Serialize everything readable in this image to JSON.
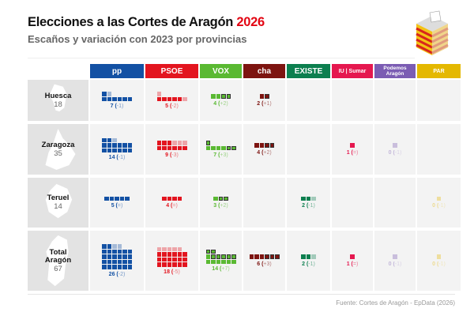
{
  "title": {
    "main": "Elecciones a las Cortes de Aragón",
    "year": "2026"
  },
  "subtitle": "Escaños y variación con 2023 por provincias",
  "source": "Fuente: Cortes de Aragón - EpData (2026)",
  "chart_data": {
    "type": "table",
    "title": "Elecciones a las Cortes de Aragón 2026",
    "subtitle": "Escaños y variación con 2023 por provincias",
    "parties": [
      {
        "name": "PP",
        "label": "pp",
        "color": "#1351a4"
      },
      {
        "name": "PSOE",
        "label": "PSOE",
        "color": "#e3151f"
      },
      {
        "name": "VOX",
        "label": "VOX",
        "color": "#5ab932"
      },
      {
        "name": "CHA",
        "label": "cha",
        "color": "#7d1410"
      },
      {
        "name": "EXISTE",
        "label": "EXISTE",
        "color": "#0c7f4f"
      },
      {
        "name": "IU-Sumar",
        "label": "IU | Sumar",
        "color": "#e5184f"
      },
      {
        "name": "Podemos",
        "label": "Podemos Aragón",
        "color": "#7b5cb3"
      },
      {
        "name": "PAR",
        "label": "PAR",
        "color": "#e4b800"
      }
    ],
    "rows": [
      {
        "name": "Huesca",
        "seats": "18",
        "results": [
          {
            "seats": 7,
            "change": "-1"
          },
          {
            "seats": 5,
            "change": "-2"
          },
          {
            "seats": 4,
            "change": "+2"
          },
          {
            "seats": 2,
            "change": "+1"
          },
          null,
          null,
          null,
          null
        ]
      },
      {
        "name": "Zaragoza",
        "seats": "35",
        "results": [
          {
            "seats": 14,
            "change": "-1"
          },
          {
            "seats": 9,
            "change": "-3"
          },
          {
            "seats": 7,
            "change": "+3"
          },
          {
            "seats": 4,
            "change": "+2"
          },
          null,
          {
            "seats": 1,
            "change": "="
          },
          {
            "seats": 0,
            "change": "-1"
          },
          null
        ]
      },
      {
        "name": "Teruel",
        "seats": "14",
        "results": [
          {
            "seats": 5,
            "change": "="
          },
          {
            "seats": 4,
            "change": "="
          },
          {
            "seats": 3,
            "change": "+2"
          },
          null,
          {
            "seats": 2,
            "change": "-1"
          },
          null,
          null,
          {
            "seats": 0,
            "change": "-1"
          }
        ]
      },
      {
        "name": "Total Aragón",
        "seats": "67",
        "results": [
          {
            "seats": 26,
            "change": "-2"
          },
          {
            "seats": 18,
            "change": "-5"
          },
          {
            "seats": 14,
            "change": "+7"
          },
          {
            "seats": 6,
            "change": "+3"
          },
          {
            "seats": 2,
            "change": "-1"
          },
          {
            "seats": 1,
            "change": "="
          },
          {
            "seats": 0,
            "change": "-1"
          },
          {
            "seats": 0,
            "change": "-1"
          }
        ]
      }
    ]
  }
}
